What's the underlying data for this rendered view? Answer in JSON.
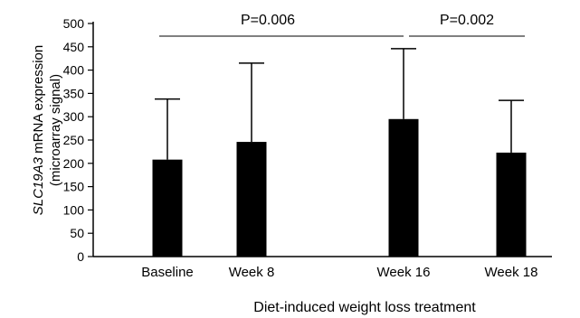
{
  "chart_data": {
    "type": "bar",
    "categories": [
      "Baseline",
      "Week 8",
      "Week 16",
      "Week 18"
    ],
    "values": [
      208,
      246,
      295,
      223
    ],
    "error_upper": [
      338,
      415,
      446,
      335
    ],
    "xlabel": "Diet-induced weight loss treatment",
    "ylabel": {
      "gene": "SLC19A3",
      "rest": " mRNA expression",
      "line2": "(microarray signal)"
    },
    "ylim": [
      0,
      500
    ],
    "yticks": [
      0,
      50,
      100,
      150,
      200,
      250,
      300,
      350,
      400,
      450,
      500
    ],
    "grid": false,
    "bar_color": "#000000",
    "annotations": [
      {
        "text": "P=0.006",
        "from": "Baseline",
        "to": "Week 16"
      },
      {
        "text": "P=0.002",
        "from": "Week 16",
        "to": "Week 18"
      }
    ]
  }
}
